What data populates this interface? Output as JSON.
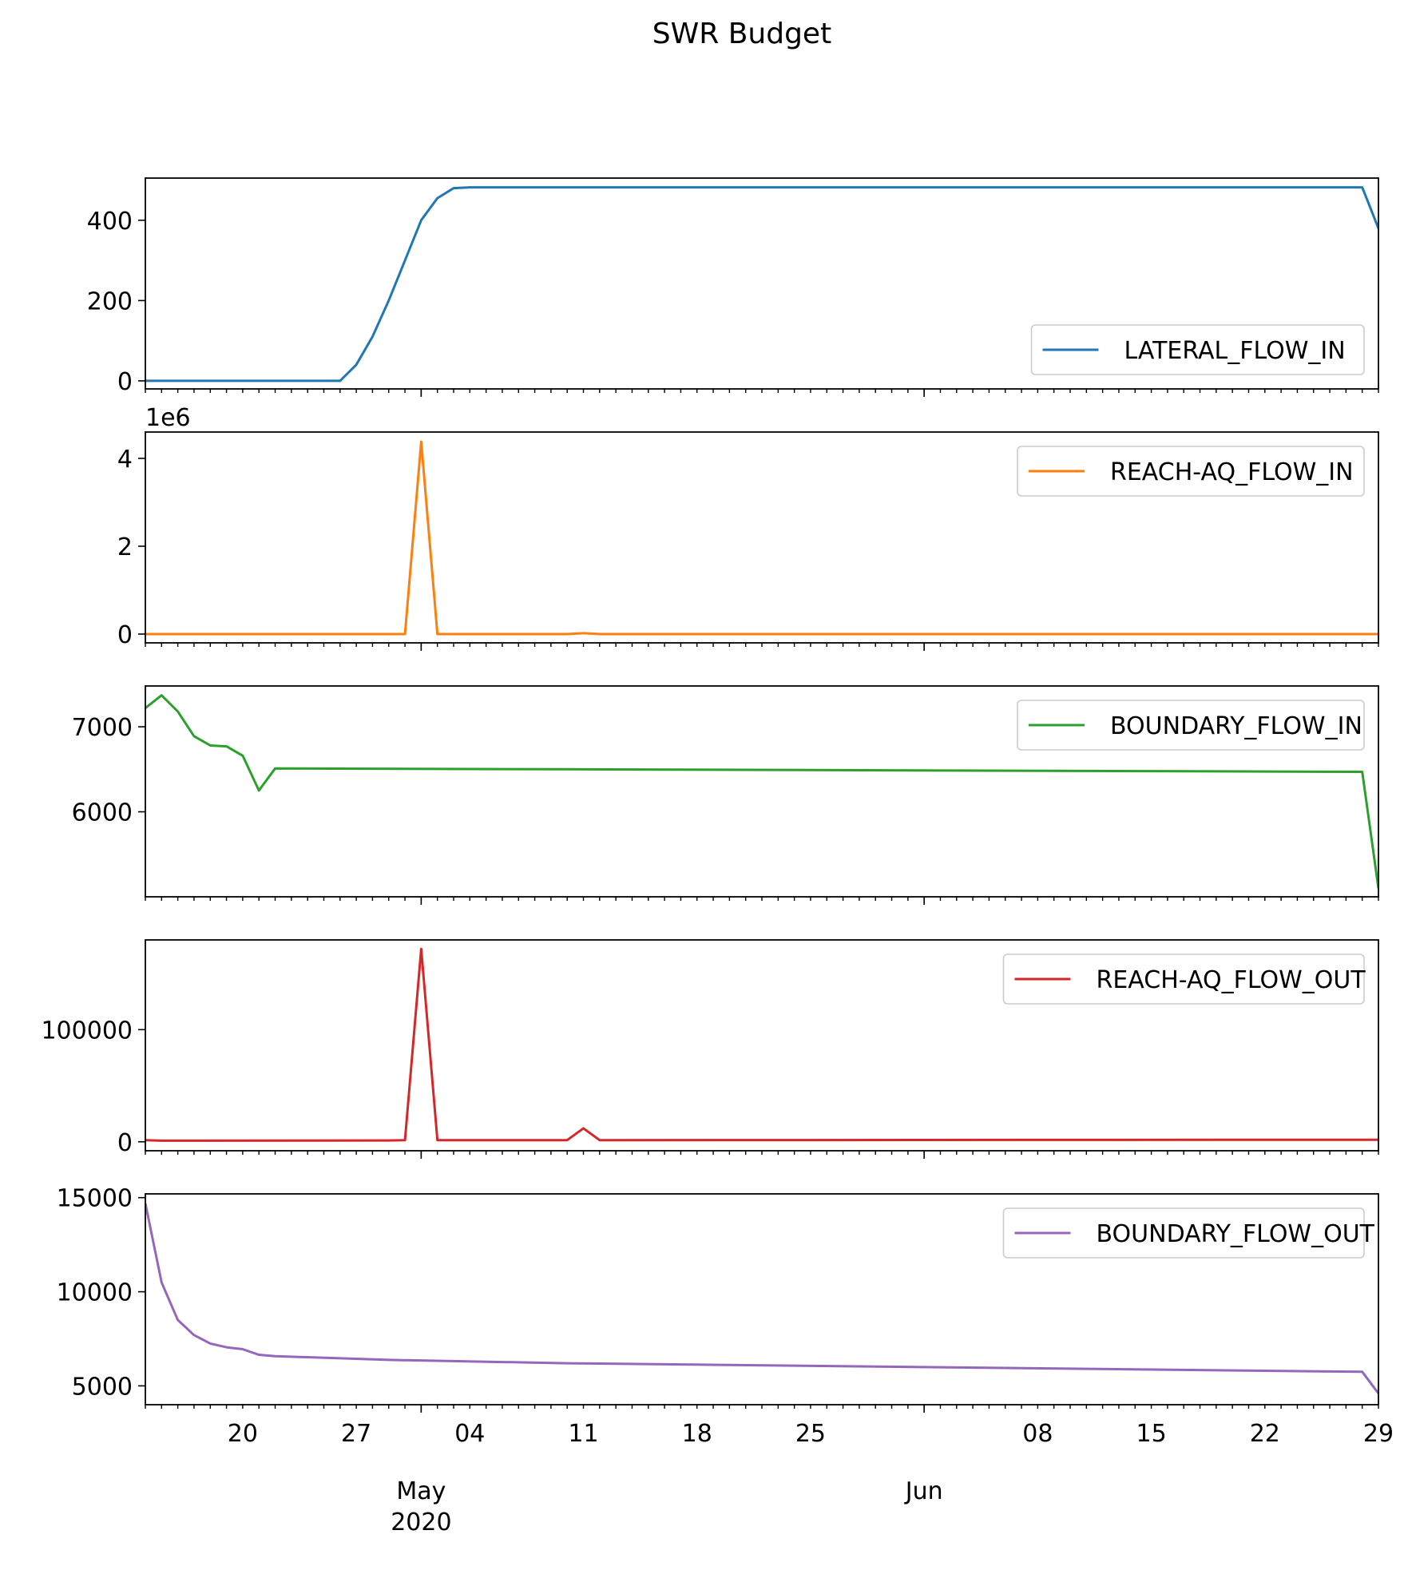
{
  "figure": {
    "title": "SWR Budget"
  },
  "x_axis": {
    "tick_labels": [
      "20",
      "27",
      "04",
      "11",
      "18",
      "25",
      "08",
      "15",
      "22",
      "29"
    ],
    "month_labels": [
      "May",
      "Jun"
    ],
    "year_label": "2020"
  },
  "chart_data": [
    {
      "type": "line",
      "series": [
        {
          "name": "LATERAL_FLOW_IN",
          "color": "#1f77b4",
          "x": [
            "2020-04-14",
            "2020-04-21",
            "2020-04-25",
            "2020-04-26",
            "2020-04-27",
            "2020-04-28",
            "2020-04-29",
            "2020-04-30",
            "2020-05-01",
            "2020-05-02",
            "2020-05-03",
            "2020-05-04",
            "2020-06-28",
            "2020-06-29"
          ],
          "values": [
            0,
            0,
            0,
            0,
            40,
            110,
            200,
            300,
            400,
            455,
            480,
            482,
            482,
            380
          ]
        }
      ],
      "ylim": [
        -20,
        505
      ],
      "yticks": [
        0,
        200,
        400
      ],
      "legend": "lower-right"
    },
    {
      "type": "line",
      "series": [
        {
          "name": "REACH-AQ_FLOW_IN",
          "color": "#ff7f0e",
          "x": [
            "2020-04-14",
            "2020-04-29",
            "2020-04-30",
            "2020-05-01",
            "2020-05-02",
            "2020-05-10",
            "2020-05-11",
            "2020-05-12",
            "2020-06-29"
          ],
          "values": [
            0,
            0,
            0,
            4380000,
            0,
            0,
            20000,
            0,
            0
          ]
        }
      ],
      "ylim": [
        -200000,
        4600000
      ],
      "yticks": [
        0,
        2000000,
        4000000
      ],
      "ytick_labels": [
        "0",
        "2",
        "4"
      ],
      "offset_text": "1e6",
      "legend": "upper-right"
    },
    {
      "type": "line",
      "series": [
        {
          "name": "BOUNDARY_FLOW_IN",
          "color": "#2ca02c",
          "x": [
            "2020-04-14",
            "2020-04-15",
            "2020-04-16",
            "2020-04-17",
            "2020-04-18",
            "2020-04-19",
            "2020-04-20",
            "2020-04-21",
            "2020-04-22",
            "2020-05-10",
            "2020-06-28",
            "2020-06-29"
          ],
          "values": [
            7220,
            7370,
            7180,
            6890,
            6780,
            6770,
            6660,
            6250,
            6510,
            6500,
            6470,
            5100
          ]
        }
      ],
      "ylim": [
        5000,
        7480
      ],
      "yticks": [
        6000,
        7000
      ],
      "legend": "upper-right"
    },
    {
      "type": "line",
      "series": [
        {
          "name": "REACH-AQ_FLOW_OUT",
          "color": "#d62728",
          "x": [
            "2020-04-14",
            "2020-04-15",
            "2020-04-29",
            "2020-04-30",
            "2020-05-01",
            "2020-05-02",
            "2020-05-10",
            "2020-05-11",
            "2020-05-12",
            "2020-06-29"
          ],
          "values": [
            1500,
            1000,
            1200,
            1500,
            172000,
            1500,
            1500,
            12000,
            1500,
            1800
          ]
        }
      ],
      "ylim": [
        -8000,
        180000
      ],
      "yticks": [
        0,
        100000
      ],
      "legend": "upper-right"
    },
    {
      "type": "line",
      "series": [
        {
          "name": "BOUNDARY_FLOW_OUT",
          "color": "#9467bd",
          "x": [
            "2020-04-14",
            "2020-04-15",
            "2020-04-16",
            "2020-04-17",
            "2020-04-18",
            "2020-04-19",
            "2020-04-20",
            "2020-04-21",
            "2020-04-22",
            "2020-04-29",
            "2020-05-10",
            "2020-06-28",
            "2020-06-29"
          ],
          "values": [
            14700,
            10500,
            8500,
            7700,
            7250,
            7050,
            6950,
            6650,
            6580,
            6380,
            6200,
            5750,
            4600
          ]
        }
      ],
      "ylim": [
        4000,
        15200
      ],
      "yticks": [
        5000,
        10000,
        15000
      ],
      "legend": "upper-right"
    }
  ]
}
